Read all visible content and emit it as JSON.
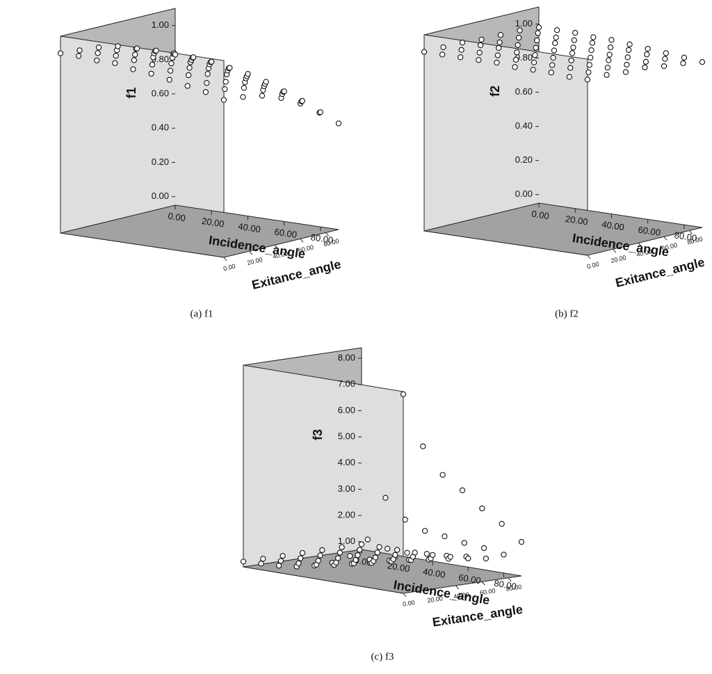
{
  "chart_data": [
    {
      "type": "scatter3d",
      "caption": "(a) f1",
      "zlabel": "f1",
      "xlabel": "Incidence_angle",
      "ylabel": "Exitance_angle",
      "x": [
        0,
        10,
        20,
        30,
        40,
        50,
        60,
        70,
        80,
        90
      ],
      "y": [
        0,
        15,
        30,
        45,
        60,
        75,
        90
      ],
      "values": [
        [
          1.0,
          1.0,
          0.99,
          0.99,
          0.97,
          0.96,
          0.94,
          0.92,
          0.9,
          0.87
        ],
        [
          0.99,
          0.99,
          0.99,
          0.98,
          0.97,
          0.95,
          0.94,
          0.91,
          0.89,
          0.86
        ],
        [
          0.98,
          0.98,
          0.97,
          0.97,
          0.95,
          0.94,
          0.92,
          0.89,
          0.87,
          0.84
        ],
        [
          0.96,
          0.96,
          0.95,
          0.94,
          0.93,
          0.91,
          0.89,
          0.86,
          0.83,
          0.8
        ],
        [
          0.92,
          0.92,
          0.92,
          0.9,
          0.89,
          0.87,
          0.84,
          0.81,
          0.78,
          0.74
        ],
        [
          0.88,
          0.88,
          0.87,
          0.86,
          0.84,
          0.81,
          0.78,
          0.75,
          0.71,
          0.66
        ],
        [
          0.83,
          0.83,
          0.82,
          0.8,
          0.78,
          0.75,
          0.71,
          0.67,
          0.62,
          0.57
        ]
      ],
      "xlim": [
        0,
        90
      ],
      "ylim": [
        0,
        90
      ],
      "zlim": [
        -0.05,
        1.1
      ],
      "xticks": [
        {
          "value": 0,
          "label": "0.00"
        },
        {
          "value": 20,
          "label": "20.00"
        },
        {
          "value": 40,
          "label": "40.00"
        },
        {
          "value": 60,
          "label": "60.00"
        },
        {
          "value": 80,
          "label": "80.00"
        }
      ],
      "yticks": [
        {
          "value": 0,
          "label": "0.00"
        },
        {
          "value": 20,
          "label": "20.00"
        },
        {
          "value": 40,
          "label": "40.00"
        },
        {
          "value": 60,
          "label": "60.00"
        },
        {
          "value": 80,
          "label": "80.00"
        }
      ],
      "zticks": [
        {
          "value": 0,
          "label": "0.00"
        },
        {
          "value": 0.2,
          "label": "0.20"
        },
        {
          "value": 0.4,
          "label": "0.40"
        },
        {
          "value": 0.6,
          "label": "0.60"
        },
        {
          "value": 0.8,
          "label": "0.80"
        },
        {
          "value": 1,
          "label": "1.00"
        }
      ]
    },
    {
      "type": "scatter3d",
      "caption": "(b) f2",
      "zlabel": "f2",
      "xlabel": "Incidence_angle",
      "ylabel": "Exitance_angle",
      "x": [
        0,
        10,
        20,
        30,
        40,
        50,
        60,
        70,
        80,
        90
      ],
      "y": [
        0,
        15,
        30,
        45,
        60,
        75,
        90
      ],
      "values": [
        [
          1.0,
          1.0,
          1.0,
          1.0,
          1.0,
          0.99,
          0.99,
          0.99,
          0.98,
          0.98
        ],
        [
          1.0,
          1.0,
          1.0,
          1.0,
          0.99,
          0.99,
          0.99,
          0.99,
          0.98,
          0.98
        ],
        [
          1.0,
          1.0,
          1.0,
          0.99,
          0.99,
          0.99,
          0.99,
          0.98,
          0.98,
          0.97
        ],
        [
          0.99,
          0.99,
          0.99,
          0.99,
          0.99,
          0.99,
          0.98,
          0.98,
          0.97,
          0.97
        ],
        [
          0.99,
          0.99,
          0.99,
          0.99,
          0.98,
          0.98,
          0.97,
          0.97,
          0.96,
          0.95
        ],
        [
          0.99,
          0.99,
          0.98,
          0.98,
          0.98,
          0.97,
          0.97,
          0.96,
          0.95,
          0.94
        ],
        [
          0.98,
          0.98,
          0.98,
          0.97,
          0.97,
          0.96,
          0.95,
          0.94,
          0.93,
          0.92
        ]
      ],
      "xlim": [
        0,
        90
      ],
      "ylim": [
        0,
        90
      ],
      "zlim": [
        -0.05,
        1.1
      ],
      "xticks": [
        {
          "value": 0,
          "label": "0.00"
        },
        {
          "value": 20,
          "label": "20.00"
        },
        {
          "value": 40,
          "label": "40.00"
        },
        {
          "value": 60,
          "label": "60.00"
        },
        {
          "value": 80,
          "label": "80.00"
        }
      ],
      "yticks": [
        {
          "value": 0,
          "label": "0.00"
        },
        {
          "value": 20,
          "label": "20.00"
        },
        {
          "value": 40,
          "label": "40.00"
        },
        {
          "value": 60,
          "label": "60.00"
        },
        {
          "value": 80,
          "label": "80.00"
        }
      ],
      "zticks": [
        {
          "value": 0,
          "label": "0.00"
        },
        {
          "value": 0.2,
          "label": "0.20"
        },
        {
          "value": 0.4,
          "label": "0.40"
        },
        {
          "value": 0.6,
          "label": "0.60"
        },
        {
          "value": 0.8,
          "label": "0.80"
        },
        {
          "value": 1,
          "label": "1.00"
        }
      ]
    },
    {
      "type": "scatter3d",
      "caption": "(c) f3",
      "zlabel": "f3",
      "xlabel": "Incidence_angle",
      "ylabel": "Exitance_angle",
      "x": [
        0,
        10,
        20,
        30,
        40,
        50,
        60,
        70,
        80,
        90
      ],
      "y": [
        0,
        15,
        30,
        45,
        60,
        75,
        90
      ],
      "values": [
        [
          0.9,
          0.94,
          0.97,
          1.05,
          1.2,
          1.42,
          1.79,
          2.53,
          4.23,
          8.3
        ],
        [
          0.9,
          0.93,
          0.95,
          1.01,
          1.11,
          1.27,
          1.54,
          2.07,
          3.29,
          6.2
        ],
        [
          0.9,
          0.92,
          0.94,
          0.98,
          1.06,
          1.19,
          1.39,
          1.8,
          2.75,
          5.0
        ],
        [
          0.9,
          0.92,
          0.93,
          0.97,
          1.04,
          1.14,
          1.31,
          1.65,
          2.43,
          4.3
        ],
        [
          0.9,
          0.91,
          0.93,
          0.95,
          1.0,
          1.08,
          1.21,
          1.47,
          2.07,
          3.5
        ],
        [
          0.9,
          0.91,
          0.92,
          0.94,
          0.98,
          1.03,
          1.13,
          1.32,
          1.76,
          2.8
        ],
        [
          0.9,
          0.91,
          0.91,
          0.92,
          0.94,
          0.98,
          1.03,
          1.14,
          1.4,
          2.0
        ]
      ],
      "xlim": [
        0,
        90
      ],
      "ylim": [
        0,
        90
      ],
      "zlim": [
        0.7,
        8.4
      ],
      "xticks": [
        {
          "value": 0,
          "label": "0.00"
        },
        {
          "value": 20,
          "label": "20.00"
        },
        {
          "value": 40,
          "label": "40.00"
        },
        {
          "value": 60,
          "label": "60.00"
        },
        {
          "value": 80,
          "label": "80.00"
        }
      ],
      "yticks": [
        {
          "value": 0,
          "label": "0.00"
        },
        {
          "value": 20,
          "label": "20.00"
        },
        {
          "value": 40,
          "label": "40.00"
        },
        {
          "value": 60,
          "label": "60.00"
        },
        {
          "value": 80,
          "label": "80.00"
        }
      ],
      "zticks": [
        {
          "value": 1,
          "label": "1.00"
        },
        {
          "value": 2,
          "label": "2.00"
        },
        {
          "value": 3,
          "label": "3.00"
        },
        {
          "value": 4,
          "label": "4.00"
        },
        {
          "value": 5,
          "label": "5.00"
        },
        {
          "value": 6,
          "label": "6.00"
        },
        {
          "value": 7,
          "label": "7.00"
        },
        {
          "value": 8,
          "label": "8.00"
        }
      ]
    }
  ]
}
